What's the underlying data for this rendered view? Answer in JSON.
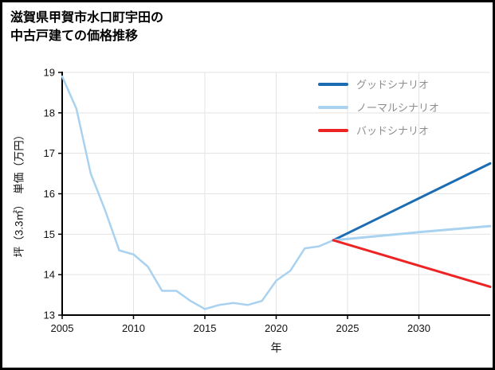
{
  "header": {
    "title_line1": "滋賀県甲賀市水口町宇田の",
    "title_line2": "中古戸建ての価格推移"
  },
  "chart_data": {
    "type": "line",
    "title": "滋賀県甲賀市水口町宇田の中古戸建ての価格推移",
    "xlabel": "年",
    "ylabel": "坪（3.3㎡）　単価（万円）",
    "xlim": [
      2005,
      2035
    ],
    "ylim": [
      13,
      19
    ],
    "xticks": [
      2005,
      2010,
      2015,
      2020,
      2025,
      2030
    ],
    "yticks": [
      13,
      14,
      15,
      16,
      17,
      18,
      19
    ],
    "grid": true,
    "legend_position": "upper right",
    "series": [
      {
        "label": "",
        "color": "#a8d2f0",
        "width": 2.5,
        "x": [
          2005,
          2006,
          2007,
          2008,
          2009,
          2010,
          2011,
          2012,
          2013,
          2014,
          2015,
          2016,
          2017,
          2018,
          2019,
          2020,
          2021,
          2022,
          2023,
          2024
        ],
        "values": [
          18.9,
          18.1,
          16.5,
          15.6,
          14.6,
          14.5,
          14.2,
          13.6,
          13.6,
          13.35,
          13.15,
          13.25,
          13.3,
          13.25,
          13.35,
          13.85,
          14.1,
          14.65,
          14.7,
          14.85
        ]
      },
      {
        "label": "グッドシナリオ",
        "color": "#1b6cb3",
        "width": 3,
        "x": [
          2024,
          2035
        ],
        "values": [
          14.85,
          16.75
        ]
      },
      {
        "label": "ノーマルシナリオ",
        "color": "#a8d2f0",
        "width": 3,
        "x": [
          2024,
          2027,
          2030,
          2035
        ],
        "values": [
          14.85,
          14.95,
          15.05,
          15.2
        ]
      },
      {
        "label": "バッドシナリオ",
        "color": "#ee2424",
        "width": 3,
        "x": [
          2024,
          2035
        ],
        "values": [
          14.85,
          13.7
        ]
      }
    ]
  }
}
